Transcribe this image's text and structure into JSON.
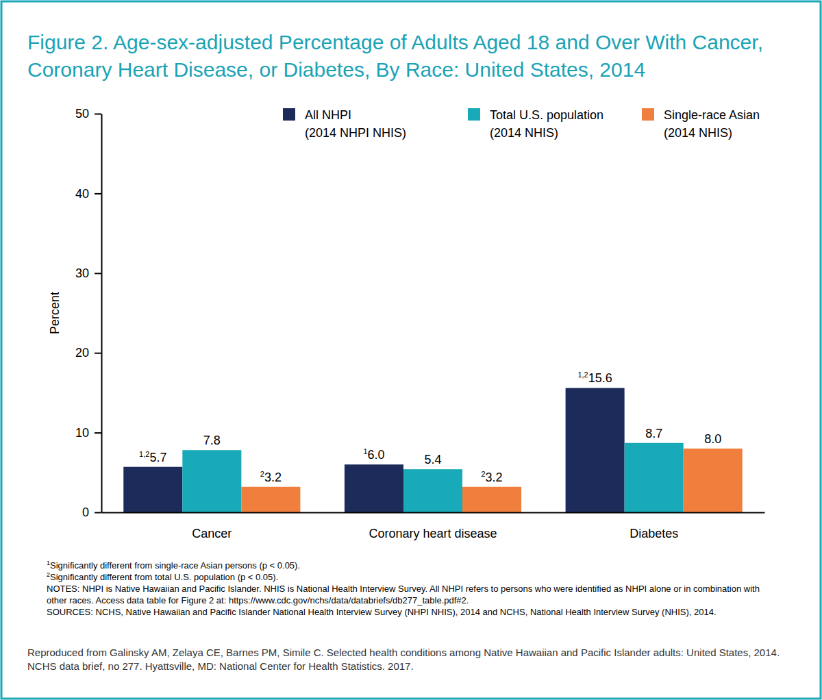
{
  "chart_data": {
    "type": "bar",
    "title": "Figure 2. Age-sex-adjusted Percentage of Adults Aged 18 and Over With Cancer, Coronary Heart Disease, or Diabetes, By Race: United States, 2014",
    "y_label": "Percent",
    "categories": [
      "Cancer",
      "Coronary heart disease",
      "Diabetes"
    ],
    "series": [
      {
        "name": "All NHPI (2014 NHPI NHIS)",
        "color": "#1c2b59",
        "values": [
          5.7,
          6.0,
          15.6
        ],
        "value_labels": [
          "5.7",
          "6.0",
          "15.6"
        ],
        "superscripts": [
          "1,2",
          "1",
          "1,2"
        ]
      },
      {
        "name": "Total U.S. population (2014 NHIS)",
        "color": "#19aab9",
        "values": [
          7.8,
          5.4,
          8.7
        ],
        "value_labels": [
          "7.8",
          "5.4",
          "8.7"
        ],
        "superscripts": [
          null,
          null,
          null
        ]
      },
      {
        "name": "Single-race Asian (2014 NHIS)",
        "color": "#f07e3c",
        "values": [
          3.2,
          3.2,
          8.0
        ],
        "value_labels": [
          "3.2",
          "3.2",
          "8.0"
        ],
        "superscripts": [
          "2",
          "2",
          null
        ]
      }
    ],
    "ylim": [
      0,
      50
    ],
    "yticks": [
      0,
      10,
      20,
      30,
      40,
      50
    ],
    "grid": false,
    "legend": "top",
    "data_labels": true,
    "footnotes": [
      {
        "marker": "1",
        "text": "Significantly different from single-race Asian persons (p < 0.05)."
      },
      {
        "marker": "2",
        "text": "Significantly different from total U.S. population (p < 0.05)."
      }
    ],
    "notes": [
      "NOTES: NHPI is Native Hawaiian and Pacific Islander. NHIS is National Health Interview Survey. All NHPI refers to persons who were identified as NHPI alone or in combination with other races. Access data table for Figure 2 at: https://www.cdc.gov/nchs/data/databriefs/db277_table.pdf#2.",
      "SOURCES: NCHS, Native Hawaiian and Pacific Islander National Health Interview Survey (NHPI NHIS), 2014 and NCHS, National Health Interview Survey (NHIS), 2014."
    ],
    "credit": "Reproduced from Galinsky AM, Zelaya CE, Barnes PM, Simile C. Selected health conditions among Native Hawaiian and Pacific Islander adults: United States, 2014. NCHS data brief, no 277. Hyattsville, MD: National Center for Health Statistics. 2017."
  }
}
